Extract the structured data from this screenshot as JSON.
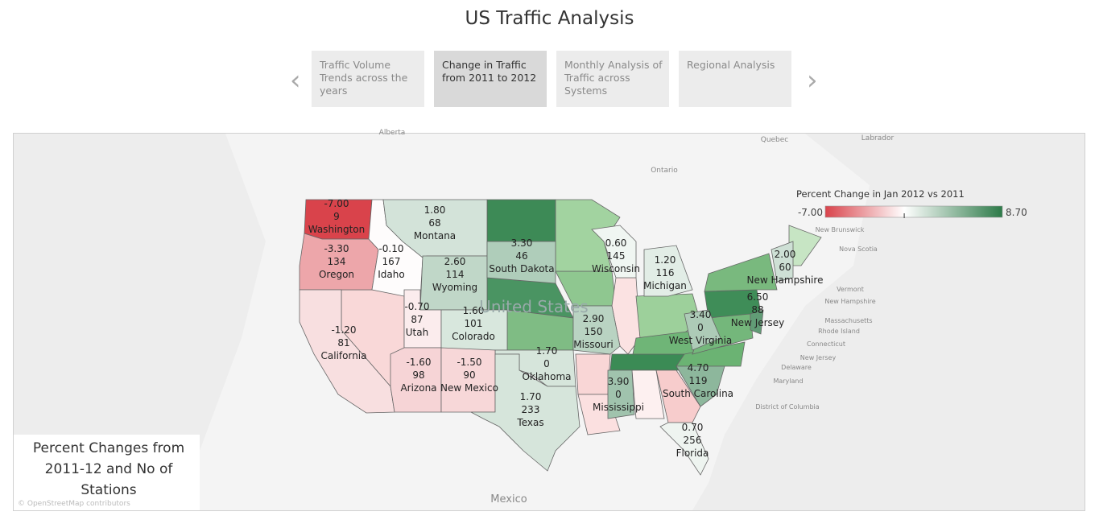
{
  "header": {
    "title": "US Traffic Analysis"
  },
  "tabs": [
    "Traffic Volume Trends across the years",
    "Change in Traffic from 2011 to 2012",
    "Monthly Analysis of Traffic across Systems",
    "Regional Analysis"
  ],
  "active_tab": 1,
  "legend": {
    "title": "Percent Change in Jan 2012 vs 2011",
    "min": {
      "value": -7,
      "label": "-7.00"
    },
    "max": {
      "value": 8.7,
      "label": "8.70"
    },
    "low_color": "#d9434b",
    "mid_color": "#ffffff",
    "high_color": "#2c7a48"
  },
  "caption": "Percent Changes from 2011-12 and No of Stations",
  "attribution": "© OpenStreetMap contributors",
  "basemap_labels": [
    "Alberta",
    "Ontario",
    "Quebec",
    "Labrador",
    "United States",
    "Mexico",
    "New Brunswick",
    "Nova Scotia",
    "Vermont",
    "New Hampshire",
    "Massachusetts",
    "Rhode Island",
    "Connecticut",
    "New Jersey",
    "Delaware",
    "Maryland",
    "District of Columbia"
  ],
  "states": [
    {
      "name": "Washington",
      "pct": -7.0,
      "pct_label": "-7.00",
      "stations": 9
    },
    {
      "name": "Oregon",
      "pct": -3.3,
      "pct_label": "-3.30",
      "stations": 134
    },
    {
      "name": "Idaho",
      "pct": -0.1,
      "pct_label": "-0.10",
      "stations": 167
    },
    {
      "name": "Montana",
      "pct": 1.8,
      "pct_label": "1.80",
      "stations": 68
    },
    {
      "name": "Wyoming",
      "pct": 2.6,
      "pct_label": "2.60",
      "stations": 114
    },
    {
      "name": "South Dakota",
      "pct": 3.3,
      "pct_label": "3.30",
      "stations": 46
    },
    {
      "name": "Wisconsin",
      "pct": 0.6,
      "pct_label": "0.60",
      "stations": 145
    },
    {
      "name": "Michigan",
      "pct": 1.2,
      "pct_label": "1.20",
      "stations": 116
    },
    {
      "name": "New Hampshire",
      "pct": 2.0,
      "pct_label": "2.00",
      "stations": 60
    },
    {
      "name": "Utah",
      "pct": -0.7,
      "pct_label": "-0.70",
      "stations": 87
    },
    {
      "name": "Colorado",
      "pct": 1.6,
      "pct_label": "1.60",
      "stations": 101
    },
    {
      "name": "California",
      "pct": -1.2,
      "pct_label": "-1.20",
      "stations": 81
    },
    {
      "name": "Missouri",
      "pct": 2.9,
      "pct_label": "2.90",
      "stations": 150
    },
    {
      "name": "New Jersey",
      "pct": 6.5,
      "pct_label": "6.50",
      "stations": 88
    },
    {
      "name": "West Virginia",
      "pct": 3.4,
      "pct_label": "3.40",
      "stations": 0
    },
    {
      "name": "Oklahoma",
      "pct": 1.7,
      "pct_label": "1.70",
      "stations": 0
    },
    {
      "name": "Arizona",
      "pct": -1.6,
      "pct_label": "-1.60",
      "stations": 98
    },
    {
      "name": "New Mexico",
      "pct": -1.5,
      "pct_label": "-1.50",
      "stations": 90
    },
    {
      "name": "South Carolina",
      "pct": 4.7,
      "pct_label": "4.70",
      "stations": 119
    },
    {
      "name": "Mississippi",
      "pct": 3.9,
      "pct_label": "3.90",
      "stations": 0
    },
    {
      "name": "Texas",
      "pct": 1.7,
      "pct_label": "1.70",
      "stations": 233
    },
    {
      "name": "Florida",
      "pct": 0.7,
      "pct_label": "0.70",
      "stations": 256
    }
  ]
}
